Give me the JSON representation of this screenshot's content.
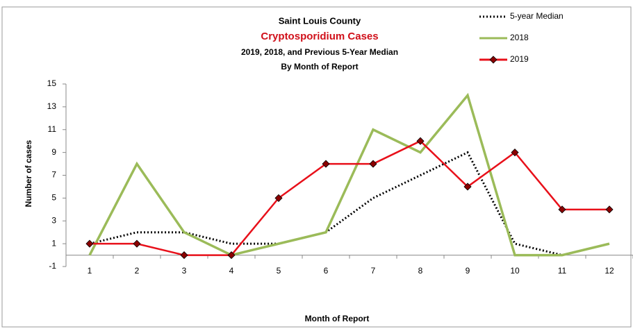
{
  "chart_data": {
    "type": "line",
    "title": "Saint Louis County",
    "subtitle": "Cryptosporidium Cases",
    "subtitle2": "2019, 2018,  and Previous 5-Year Median",
    "subtitle3": "By Month of Report",
    "xlabel": "Month of Report",
    "ylabel": "Number of cases",
    "categories": [
      "1",
      "2",
      "3",
      "4",
      "5",
      "6",
      "7",
      "8",
      "9",
      "10",
      "11",
      "12"
    ],
    "series": [
      {
        "name": "5-year Median",
        "color": "#000000",
        "style": "dotted",
        "values": [
          1,
          2,
          2,
          1,
          1,
          2,
          5,
          7,
          9,
          1,
          0,
          1
        ]
      },
      {
        "name": "2018",
        "color": "#9bbb59",
        "style": "solid",
        "values": [
          0,
          8,
          2,
          0,
          1,
          2,
          11,
          9,
          14,
          0,
          0,
          1
        ]
      },
      {
        "name": "2019",
        "color": "#e8101a",
        "style": "solid",
        "marker": "diamond",
        "values": [
          1,
          1,
          0,
          0,
          5,
          8,
          8,
          10,
          6,
          9,
          4,
          4
        ]
      }
    ],
    "ylim": [
      -1,
      15
    ],
    "yticks": [
      -1,
      1,
      3,
      5,
      7,
      9,
      11,
      13,
      15
    ],
    "grid": false,
    "legend": "top-right"
  }
}
